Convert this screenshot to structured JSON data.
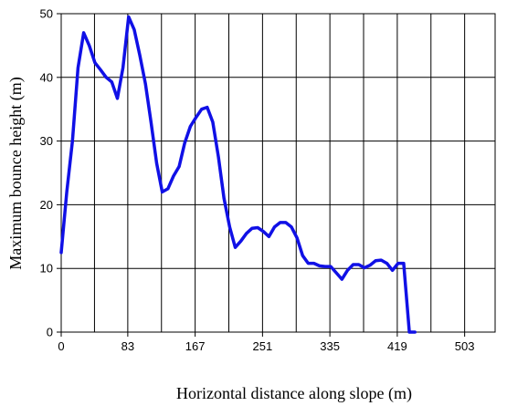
{
  "chart_data": {
    "type": "line",
    "xlabel": "Horizontal distance along slope (m)",
    "ylabel": "Maximum bounce height (m)",
    "xlim": [
      0,
      541
    ],
    "ylim": [
      0,
      50
    ],
    "x_ticks": [
      0,
      83,
      167,
      251,
      335,
      419,
      503
    ],
    "x_tick_labels": [
      "0",
      "83",
      "167",
      "251",
      "335",
      "419",
      "503"
    ],
    "y_ticks": [
      0,
      10,
      20,
      30,
      40,
      50
    ],
    "y_tick_labels": [
      "0",
      "10",
      "20",
      "30",
      "40",
      "50"
    ],
    "x_gridlines": [
      0,
      41.5,
      83,
      125,
      167,
      209,
      251,
      293,
      335,
      377,
      419,
      461,
      503
    ],
    "y_gridlines": [
      0,
      10,
      20,
      30,
      40,
      50
    ],
    "grid": true,
    "legend": "none",
    "line_color": "#1010e6",
    "series": [
      {
        "points": [
          [
            0,
            12.5
          ],
          [
            7,
            22
          ],
          [
            14,
            30
          ],
          [
            21,
            41.5
          ],
          [
            28,
            47
          ],
          [
            35,
            45
          ],
          [
            42,
            42.3
          ],
          [
            49,
            41.2
          ],
          [
            56,
            40
          ],
          [
            63,
            39.3
          ],
          [
            70,
            36.7
          ],
          [
            77,
            41.5
          ],
          [
            84,
            49.5
          ],
          [
            91,
            47.5
          ],
          [
            98,
            43.5
          ],
          [
            105,
            39
          ],
          [
            112,
            33
          ],
          [
            119,
            26.5
          ],
          [
            126,
            22
          ],
          [
            133,
            22.5
          ],
          [
            140,
            24.5
          ],
          [
            147,
            26
          ],
          [
            154,
            29.7
          ],
          [
            161,
            32.3
          ],
          [
            168,
            33.7
          ],
          [
            175,
            35
          ],
          [
            182,
            35.3
          ],
          [
            189,
            33
          ],
          [
            196,
            27.5
          ],
          [
            203,
            21
          ],
          [
            210,
            16.5
          ],
          [
            217,
            13.3
          ],
          [
            224,
            14.3
          ],
          [
            231,
            15.5
          ],
          [
            238,
            16.3
          ],
          [
            245,
            16.4
          ],
          [
            252,
            15.8
          ],
          [
            259,
            15
          ],
          [
            266,
            16.5
          ],
          [
            273,
            17.2
          ],
          [
            280,
            17.2
          ],
          [
            287,
            16.5
          ],
          [
            294,
            14.8
          ],
          [
            301,
            12
          ],
          [
            308,
            10.8
          ],
          [
            315,
            10.8
          ],
          [
            322,
            10.4
          ],
          [
            329,
            10.3
          ],
          [
            336,
            10.3
          ],
          [
            343,
            9.3
          ],
          [
            350,
            8.3
          ],
          [
            357,
            9.7
          ],
          [
            364,
            10.6
          ],
          [
            371,
            10.6
          ],
          [
            378,
            10.1
          ],
          [
            385,
            10.5
          ],
          [
            392,
            11.2
          ],
          [
            399,
            11.3
          ],
          [
            406,
            10.8
          ],
          [
            413,
            9.7
          ],
          [
            420,
            10.8
          ],
          [
            427,
            10.8
          ],
          [
            434,
            0
          ],
          [
            441,
            0
          ]
        ]
      }
    ]
  }
}
